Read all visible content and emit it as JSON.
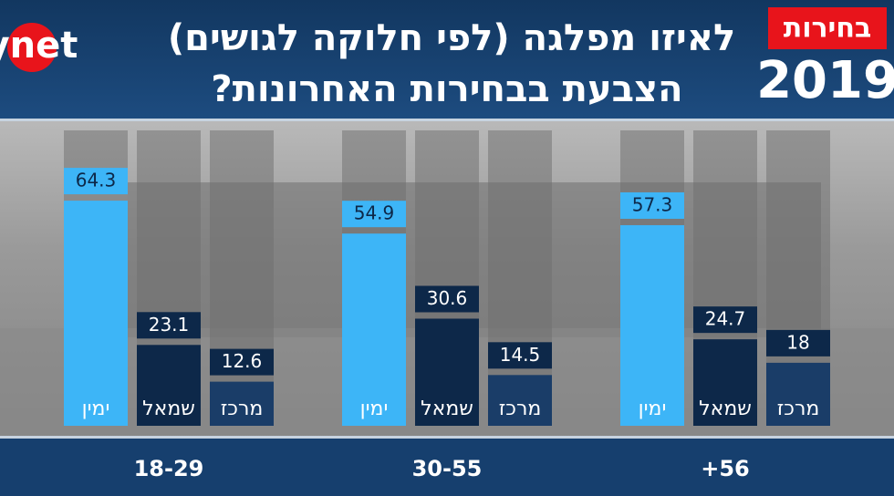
{
  "chart_data": {
    "type": "grouped-bar",
    "title_lines": [
      "לאיזו מפלגה (לפי חלוקה לגושים)",
      "הצבעת בבחירות האחרונות?"
    ],
    "brand": "ynet",
    "badge": {
      "word": "בחירות",
      "year": "2019"
    },
    "categories": [
      "18-29",
      "30-55",
      "+56"
    ],
    "series": [
      {
        "name": "ימין",
        "color": "#3db5f7",
        "values": [
          64.3,
          54.9,
          57.3
        ]
      },
      {
        "name": "שמאל",
        "color": "#0d2849",
        "values": [
          23.1,
          30.6,
          24.7
        ]
      },
      {
        "name": "מרכז",
        "color": "#1a3d68",
        "values": [
          12.6,
          14.5,
          18
        ]
      }
    ]
  }
}
